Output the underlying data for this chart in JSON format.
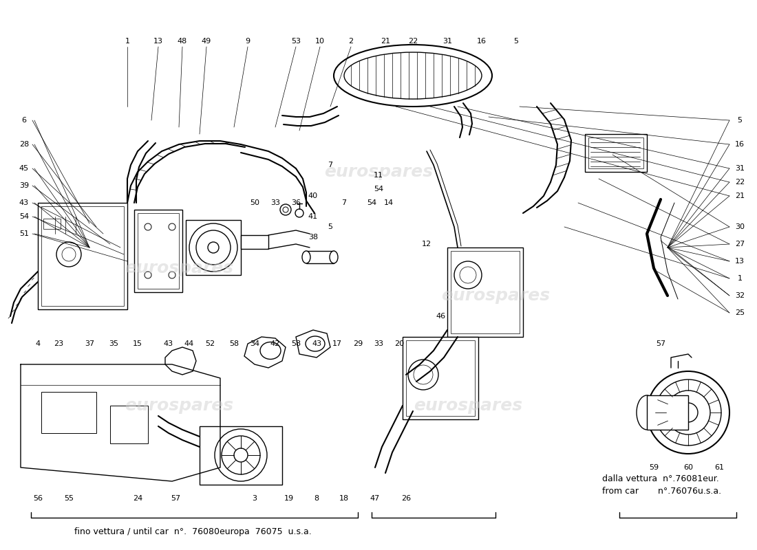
{
  "background_color": "#ffffff",
  "line_color": "#000000",
  "watermark_color": "#d0d0d0",
  "watermark_text": "eurospares",
  "bottom_left_text": "fino vettura / until car  n°.  76080europa  76075  u.s.a.",
  "bottom_right_text1": "dalla vettura  n°.76081eur.",
  "bottom_right_text2": "from car       n°.76076u.s.a.",
  "figsize": [
    11.0,
    8.0
  ],
  "dpi": 100
}
